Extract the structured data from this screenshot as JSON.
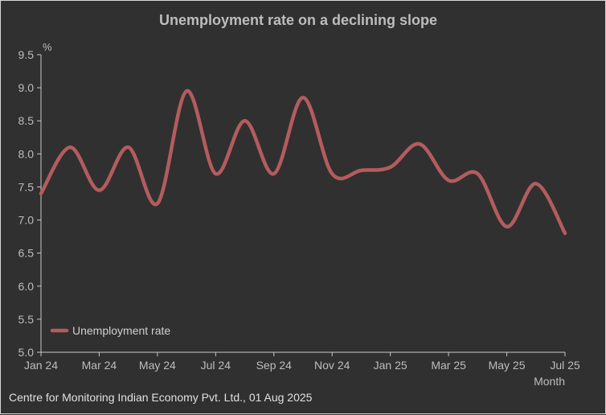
{
  "chart_data": {
    "type": "line",
    "title": "Unemployment rate on a declining slope",
    "ylabel": "%",
    "xlabel": "Month",
    "ylim": [
      5.0,
      9.5
    ],
    "yticks": [
      "5.0",
      "5.5",
      "6.0",
      "6.5",
      "7.0",
      "7.5",
      "8.0",
      "8.5",
      "9.0",
      "9.5"
    ],
    "x": [
      "Jan 24",
      "Feb 24",
      "Mar 24",
      "Apr 24",
      "May 24",
      "Jun 24",
      "Jul 24",
      "Aug 24",
      "Sep 24",
      "Oct 24",
      "Nov 24",
      "Dec 24",
      "Jan 25",
      "Feb 25",
      "Mar 25",
      "Apr 25",
      "May 25",
      "Jun 25",
      "Jul 25"
    ],
    "xtick_labels": [
      "Jan 24",
      "Mar 24",
      "May 24",
      "Jul 24",
      "Sep 24",
      "Nov 24",
      "Jan 25",
      "Mar 25",
      "May 25",
      "Jul 25"
    ],
    "series": [
      {
        "name": "Unemployment rate",
        "color": "#b35c5e",
        "values": [
          7.4,
          8.1,
          7.45,
          8.1,
          7.25,
          8.95,
          7.7,
          8.5,
          7.7,
          8.85,
          7.7,
          7.75,
          7.8,
          8.15,
          7.6,
          7.7,
          6.9,
          7.55,
          6.8
        ]
      }
    ],
    "legend": [
      "Unemployment rate"
    ],
    "legend_position": "bottom-left",
    "source": "Centre for Monitoring Indian Economy Pvt. Ltd., 01 Aug 2025"
  }
}
